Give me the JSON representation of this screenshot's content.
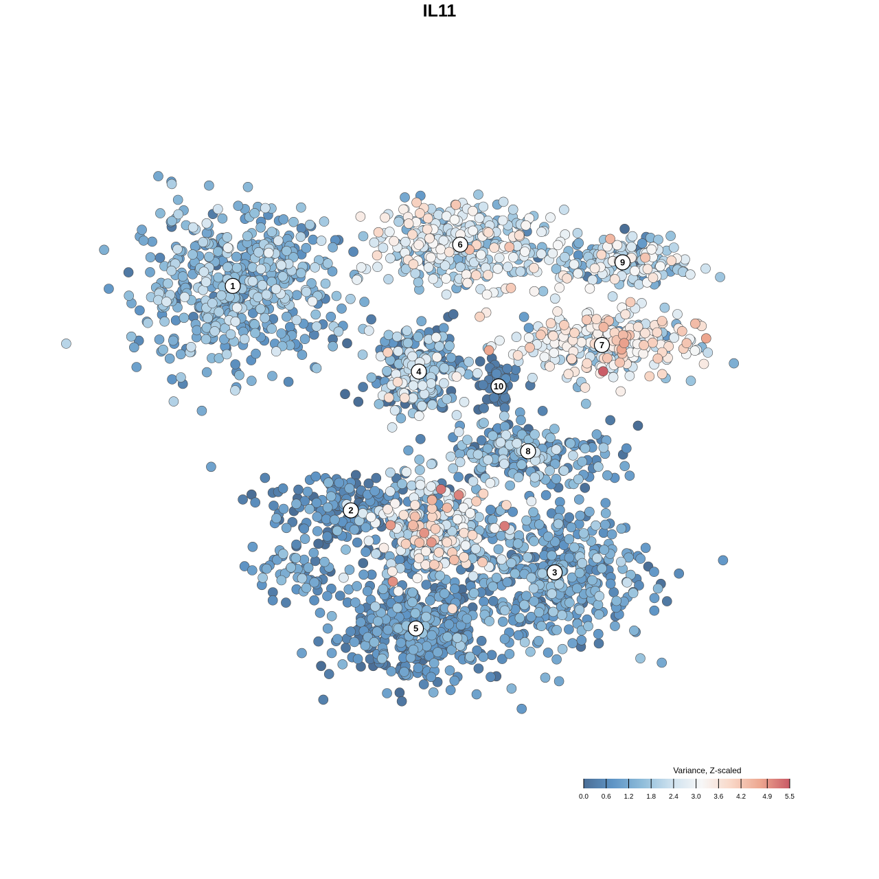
{
  "chart_data": {
    "type": "scatter",
    "title": "IL11",
    "legend": {
      "title": "Variance, Z-scaled",
      "placement": "bottom-right",
      "min": 0.0,
      "max": 5.5,
      "ticks": [
        "0.0",
        "0.6",
        "1.2",
        "1.8",
        "2.4",
        "3.0",
        "3.6",
        "4.2",
        "4.9",
        "5.5"
      ],
      "tick_values": [
        0.0,
        0.6,
        1.2,
        1.8,
        2.4,
        3.0,
        3.6,
        4.2,
        4.9,
        5.5
      ],
      "colormap": [
        "#4a6e96",
        "#5f95c6",
        "#8fbdda",
        "#cfe2ef",
        "#f7f7f7",
        "#f9d8c8",
        "#eda790",
        "#c95a66"
      ]
    },
    "axes": {
      "visible": false,
      "grid": false
    },
    "clusters": [
      {
        "label": "1",
        "x": -0.7,
        "y": 0.52,
        "mean_value": 1.3,
        "spread": [
          0.17,
          0.13
        ],
        "count": 520,
        "sd": 0.55
      },
      {
        "label": "2",
        "x": -0.3,
        "y": -0.24,
        "mean_value": 0.6,
        "spread": [
          0.14,
          0.07
        ],
        "count": 170,
        "sd": 0.5
      },
      {
        "label": "3",
        "x": 0.39,
        "y": -0.45,
        "mean_value": 1.0,
        "spread": [
          0.16,
          0.12
        ],
        "count": 380,
        "sd": 0.45
      },
      {
        "label": "4",
        "x": -0.07,
        "y": 0.23,
        "mean_value": 1.3,
        "spread": [
          0.08,
          0.08
        ],
        "count": 220,
        "sd": 1.0
      },
      {
        "label": "5",
        "x": -0.08,
        "y": -0.64,
        "mean_value": 0.7,
        "spread": [
          0.14,
          0.09
        ],
        "count": 420,
        "sd": 0.45
      },
      {
        "label": "6",
        "x": 0.07,
        "y": 0.66,
        "mean_value": 2.3,
        "spread": [
          0.16,
          0.07
        ],
        "count": 330,
        "sd": 0.8
      },
      {
        "label": "7",
        "x": 0.55,
        "y": 0.32,
        "mean_value": 2.9,
        "spread": [
          0.16,
          0.06
        ],
        "count": 260,
        "sd": 0.9
      },
      {
        "label": "8",
        "x": 0.3,
        "y": -0.04,
        "mean_value": 1.1,
        "spread": [
          0.15,
          0.05
        ],
        "count": 200,
        "sd": 0.8
      },
      {
        "label": "9",
        "x": 0.62,
        "y": 0.6,
        "mean_value": 2.0,
        "spread": [
          0.1,
          0.05
        ],
        "count": 170,
        "sd": 0.9
      },
      {
        "label": "10",
        "x": 0.2,
        "y": 0.18,
        "mean_value": 0.2,
        "spread": [
          0.03,
          0.04
        ],
        "count": 50,
        "sd": 0.2
      },
      {
        "label": "",
        "x": -0.02,
        "y": -0.3,
        "mean_value": 2.3,
        "spread": [
          0.1,
          0.09
        ],
        "count": 260,
        "sd": 1.2
      },
      {
        "label": "",
        "x": -0.47,
        "y": -0.45,
        "mean_value": 1.0,
        "spread": [
          0.07,
          0.04
        ],
        "count": 50,
        "sd": 0.5
      }
    ]
  }
}
